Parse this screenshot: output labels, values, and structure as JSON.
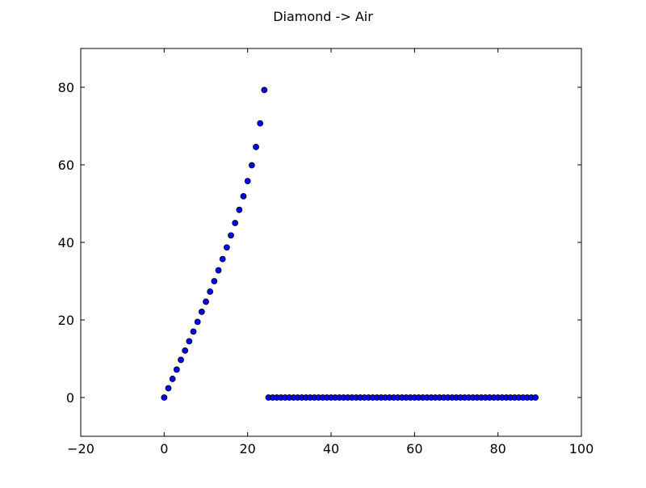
{
  "chart_data": {
    "type": "scatter",
    "title": "Diamond -> Air",
    "xlabel": "",
    "ylabel": "",
    "xlim": [
      -20,
      100
    ],
    "ylim": [
      -10,
      90
    ],
    "xticks": [
      -20,
      0,
      20,
      40,
      60,
      80,
      100
    ],
    "yticks": [
      0,
      20,
      40,
      60,
      80
    ],
    "grid": false,
    "marker_color": "#0000ff",
    "marker_edge_color": "#000000",
    "x": [
      0,
      1,
      2,
      3,
      4,
      5,
      6,
      7,
      8,
      9,
      10,
      11,
      12,
      13,
      14,
      15,
      16,
      17,
      18,
      19,
      20,
      21,
      22,
      23,
      24,
      25,
      26,
      27,
      28,
      29,
      30,
      31,
      32,
      33,
      34,
      35,
      36,
      37,
      38,
      39,
      40,
      41,
      42,
      43,
      44,
      45,
      46,
      47,
      48,
      49,
      50,
      51,
      52,
      53,
      54,
      55,
      56,
      57,
      58,
      59,
      60,
      61,
      62,
      63,
      64,
      65,
      66,
      67,
      68,
      69,
      70,
      71,
      72,
      73,
      74,
      75,
      76,
      77,
      78,
      79,
      80,
      81,
      82,
      83,
      84,
      85,
      86,
      87,
      88,
      89
    ],
    "y": [
      0,
      2.4,
      4.8,
      7.2,
      9.7,
      12.1,
      14.5,
      17.0,
      19.5,
      22.1,
      24.7,
      27.3,
      30.0,
      32.8,
      35.7,
      38.7,
      41.8,
      45.0,
      48.4,
      51.9,
      55.8,
      59.9,
      64.6,
      70.7,
      79.3,
      0,
      0,
      0,
      0,
      0,
      0,
      0,
      0,
      0,
      0,
      0,
      0,
      0,
      0,
      0,
      0,
      0,
      0,
      0,
      0,
      0,
      0,
      0,
      0,
      0,
      0,
      0,
      0,
      0,
      0,
      0,
      0,
      0,
      0,
      0,
      0,
      0,
      0,
      0,
      0,
      0,
      0,
      0,
      0,
      0,
      0,
      0,
      0,
      0,
      0,
      0,
      0,
      0,
      0,
      0,
      0,
      0,
      0,
      0,
      0,
      0,
      0,
      0,
      0,
      0
    ]
  }
}
